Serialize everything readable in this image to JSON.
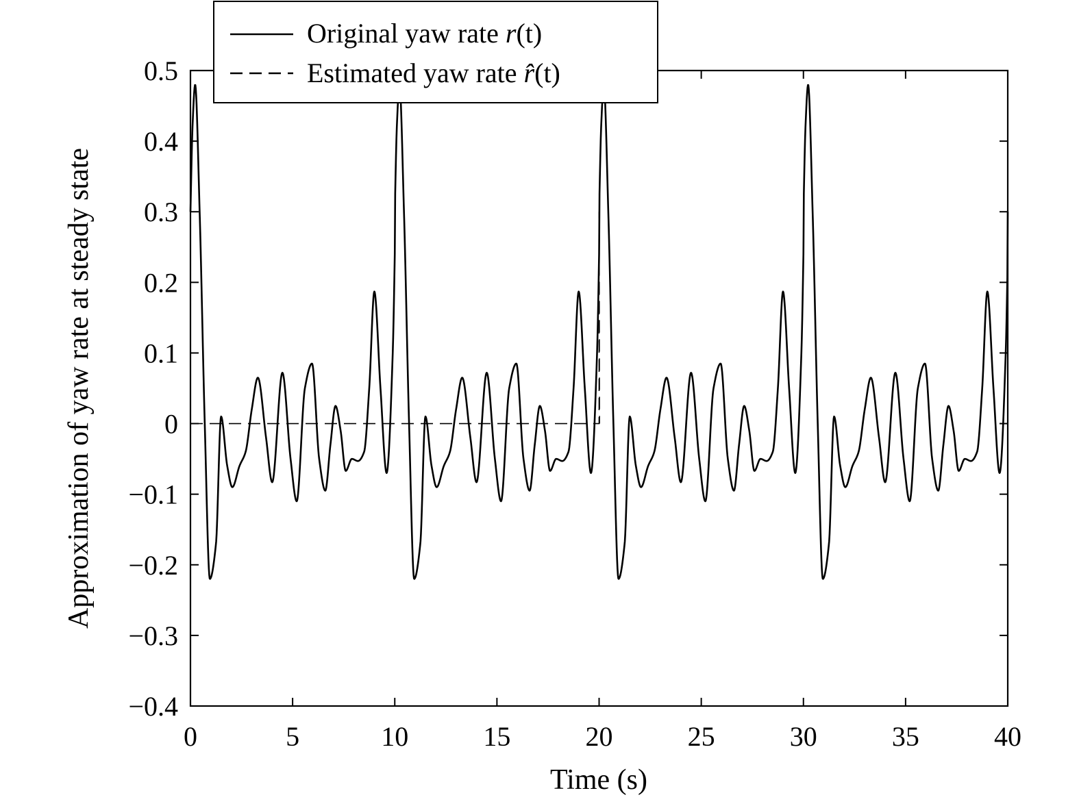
{
  "chart_data": {
    "type": "line",
    "title": "",
    "xlabel": "Time (s)",
    "ylabel": "Approximation of yaw rate at steady state",
    "xlim": [
      0,
      40
    ],
    "ylim": [
      -0.4,
      0.5
    ],
    "xticks": [
      0,
      5,
      10,
      15,
      20,
      25,
      30,
      35,
      40
    ],
    "yticks": [
      -0.4,
      -0.3,
      -0.2,
      -0.1,
      0,
      0.1,
      0.2,
      0.3,
      0.4,
      0.5
    ],
    "xtick_labels": [
      "0",
      "5",
      "10",
      "15",
      "20",
      "25",
      "30",
      "35",
      "40"
    ],
    "ytick_labels": [
      "−0.4",
      "−0.3",
      "−0.2",
      "−0.1",
      "0",
      "0.1",
      "0.2",
      "0.3",
      "0.4",
      "0.5"
    ],
    "grid": false,
    "legend_position": "top-left",
    "series": [
      {
        "name_text": "Original yaw rate ",
        "name_symbol": "r",
        "name_arg": "(t)",
        "style": "solid",
        "color": "#000000",
        "period": 10,
        "x": [
          0,
          0.1,
          0.23,
          0.45,
          0.7,
          0.95,
          1.25,
          1.5,
          1.8,
          2.05,
          2.4,
          2.7,
          3.0,
          3.3,
          3.7,
          4.0,
          4.5,
          4.9,
          5.2,
          5.6,
          5.95,
          6.3,
          6.6,
          6.85,
          7.1,
          7.35,
          7.6,
          7.9,
          8.2,
          8.5,
          8.75,
          9.0,
          9.3,
          9.6,
          9.9,
          10.05
        ],
        "y": [
          0.3,
          0.42,
          0.48,
          0.3,
          0.0,
          -0.22,
          -0.17,
          0.01,
          -0.06,
          -0.09,
          -0.06,
          -0.04,
          0.02,
          0.065,
          -0.02,
          -0.083,
          0.072,
          -0.05,
          -0.11,
          0.05,
          0.085,
          -0.05,
          -0.095,
          -0.03,
          0.025,
          -0.01,
          -0.067,
          -0.05,
          -0.053,
          -0.04,
          0.05,
          0.187,
          0.05,
          -0.07,
          0.1,
          0.32
        ]
      },
      {
        "name_text": "Estimated yaw rate ",
        "name_symbol": "r̂",
        "name_arg": "(t)",
        "style": "dashed",
        "color": "#000000",
        "x": [
          0,
          20,
          20,
          20.02
        ],
        "y": [
          0,
          0,
          0.3,
          0
        ]
      }
    ]
  }
}
